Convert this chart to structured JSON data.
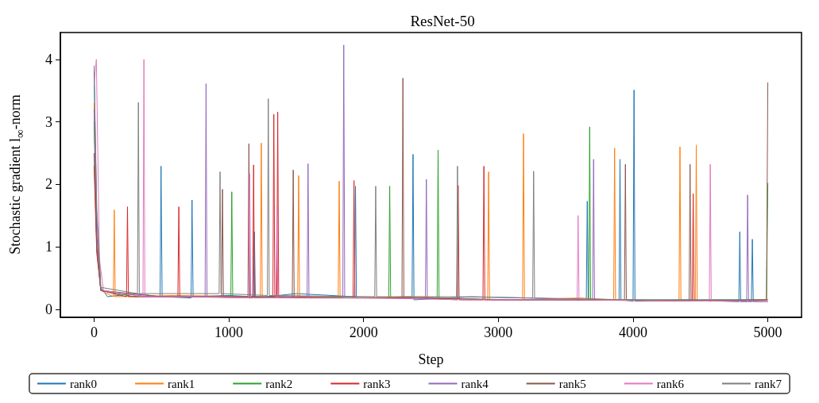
{
  "chart_data": {
    "type": "line",
    "title": "ResNet-50",
    "xlabel": "Step",
    "ylabel": "Stochastic gradient l$_{∞}$-norm",
    "xlim": [
      -250,
      5250
    ],
    "ylim": [
      -0.13,
      4.43
    ],
    "xticks": [
      0,
      1000,
      2000,
      3000,
      4000,
      5000
    ],
    "yticks": [
      0,
      1,
      2,
      3,
      4
    ],
    "grid": false,
    "legend": "bottom",
    "marker": "none",
    "line_style": "solid",
    "series": [
      {
        "name": "rank0",
        "color": "#1f77b4",
        "x": [
          0,
          20,
          50,
          100,
          300,
          490,
          497,
          505,
          720,
          727,
          735,
          1000,
          1183,
          1190,
          1197,
          1500,
          1933,
          1940,
          1947,
          2360,
          2367,
          2374,
          2800,
          3200,
          3653,
          3660,
          3667,
          3896,
          3903,
          3910,
          4000,
          4007,
          4014,
          4400,
          4785,
          4792,
          4799,
          4878,
          4885,
          4892,
          5000
        ],
        "values": [
          3.8,
          1.5,
          0.35,
          0.2,
          0.25,
          0.2,
          2.29,
          0.2,
          0.18,
          1.75,
          0.2,
          0.22,
          0.2,
          1.24,
          0.18,
          0.25,
          0.2,
          1.97,
          0.18,
          0.2,
          2.48,
          0.15,
          0.2,
          0.18,
          0.15,
          1.73,
          0.15,
          0.15,
          2.4,
          0.15,
          0.13,
          3.51,
          0.13,
          0.15,
          0.12,
          1.24,
          0.12,
          0.12,
          1.12,
          0.12,
          0.12
        ]
      },
      {
        "name": "rank1",
        "color": "#ff7f0e",
        "x": [
          0,
          20,
          50,
          143,
          150,
          157,
          600,
          1234,
          1241,
          1248,
          1511,
          1518,
          1525,
          1812,
          1819,
          1826,
          2400,
          2921,
          2928,
          2935,
          3180,
          3187,
          3194,
          3600,
          3856,
          3863,
          3870,
          4341,
          4348,
          4355,
          4462,
          4469,
          4476,
          5000
        ],
        "values": [
          3.3,
          1.2,
          0.3,
          0.2,
          1.59,
          0.2,
          0.22,
          0.2,
          2.66,
          0.2,
          0.18,
          2.14,
          0.2,
          0.18,
          2.05,
          0.18,
          0.2,
          0.15,
          2.2,
          0.15,
          0.15,
          2.81,
          0.15,
          0.18,
          0.15,
          2.58,
          0.15,
          0.14,
          2.6,
          0.14,
          0.14,
          2.63,
          0.14,
          0.15
        ]
      },
      {
        "name": "rank2",
        "color": "#2ca02c",
        "x": [
          0,
          20,
          50,
          300,
          1015,
          1022,
          1029,
          1600,
          2187,
          2194,
          2201,
          2546,
          2553,
          2560,
          3100,
          3671,
          3678,
          3685,
          4990,
          5000
        ],
        "values": [
          3.0,
          1.0,
          0.3,
          0.2,
          0.2,
          1.88,
          0.2,
          0.2,
          0.18,
          1.97,
          0.18,
          0.18,
          2.55,
          0.18,
          0.15,
          0.15,
          2.92,
          0.15,
          0.15,
          2.02
        ]
      },
      {
        "name": "rank3",
        "color": "#d62728",
        "x": [
          0,
          20,
          50,
          241,
          248,
          255,
          622,
          629,
          636,
          1177,
          1184,
          1191,
          1327,
          1334,
          1341,
          1356,
          1363,
          1370,
          1922,
          1929,
          1936,
          2400,
          2695,
          2702,
          2709,
          2886,
          2893,
          2900,
          3500,
          4439,
          4446,
          4453,
          5000
        ],
        "values": [
          2.3,
          0.9,
          0.3,
          0.2,
          1.64,
          0.2,
          0.2,
          1.64,
          0.2,
          0.18,
          2.31,
          0.18,
          0.2,
          3.12,
          0.2,
          0.2,
          3.16,
          0.2,
          0.18,
          2.06,
          0.18,
          0.18,
          0.15,
          1.98,
          0.15,
          0.15,
          2.29,
          0.15,
          0.15,
          0.13,
          1.85,
          0.13,
          0.15
        ]
      },
      {
        "name": "rank4",
        "color": "#9467bd",
        "x": [
          0,
          20,
          50,
          400,
          824,
          831,
          838,
          1200,
          1581,
          1588,
          1595,
          1846,
          1853,
          1860,
          2459,
          2466,
          2473,
          3000,
          3700,
          3707,
          3714,
          4300,
          4843,
          4850,
          4857,
          5000
        ],
        "values": [
          3.2,
          1.2,
          0.3,
          0.2,
          0.2,
          3.61,
          0.2,
          0.2,
          0.18,
          2.33,
          0.18,
          0.18,
          4.23,
          0.18,
          0.18,
          2.08,
          0.18,
          0.15,
          0.15,
          2.4,
          0.15,
          0.14,
          0.13,
          1.83,
          0.13,
          0.12
        ]
      },
      {
        "name": "rank5",
        "color": "#8c564b",
        "x": [
          0,
          20,
          50,
          500,
          946,
          953,
          960,
          1142,
          1149,
          1156,
          1471,
          1478,
          1485,
          2285,
          2292,
          2299,
          3000,
          3936,
          3943,
          3950,
          4416,
          4423,
          4430,
          4990,
          5000
        ],
        "values": [
          2.5,
          1.0,
          0.3,
          0.2,
          0.2,
          1.92,
          0.2,
          0.2,
          2.65,
          0.2,
          0.18,
          2.23,
          0.18,
          0.18,
          3.7,
          0.18,
          0.15,
          0.15,
          2.32,
          0.15,
          0.13,
          2.32,
          0.13,
          0.15,
          3.63
        ]
      },
      {
        "name": "rank6",
        "color": "#e377c2",
        "x": [
          0,
          17,
          40,
          70,
          363,
          370,
          377,
          800,
          1148,
          1155,
          1162,
          1350,
          1357,
          1364,
          2000,
          2800,
          3585,
          3592,
          3599,
          4200,
          4566,
          4573,
          4580,
          5000
        ],
        "values": [
          3.6,
          4.0,
          0.8,
          0.3,
          0.2,
          4.0,
          0.2,
          0.2,
          0.18,
          2.17,
          0.18,
          0.18,
          1.65,
          0.18,
          0.18,
          0.15,
          0.15,
          1.5,
          0.15,
          0.14,
          0.13,
          2.32,
          0.13,
          0.12
        ]
      },
      {
        "name": "rank7",
        "color": "#7f7f7f",
        "x": [
          0,
          20,
          50,
          322,
          329,
          336,
          928,
          935,
          942,
          1286,
          1293,
          1300,
          2083,
          2090,
          2097,
          2690,
          2697,
          2704,
          3255,
          3262,
          3269,
          4000,
          5000
        ],
        "values": [
          3.9,
          1.6,
          0.35,
          0.25,
          3.31,
          0.25,
          0.25,
          2.2,
          0.25,
          0.22,
          3.37,
          0.22,
          0.2,
          1.97,
          0.2,
          0.2,
          2.29,
          0.2,
          0.18,
          2.21,
          0.18,
          0.15,
          0.15
        ]
      }
    ]
  }
}
